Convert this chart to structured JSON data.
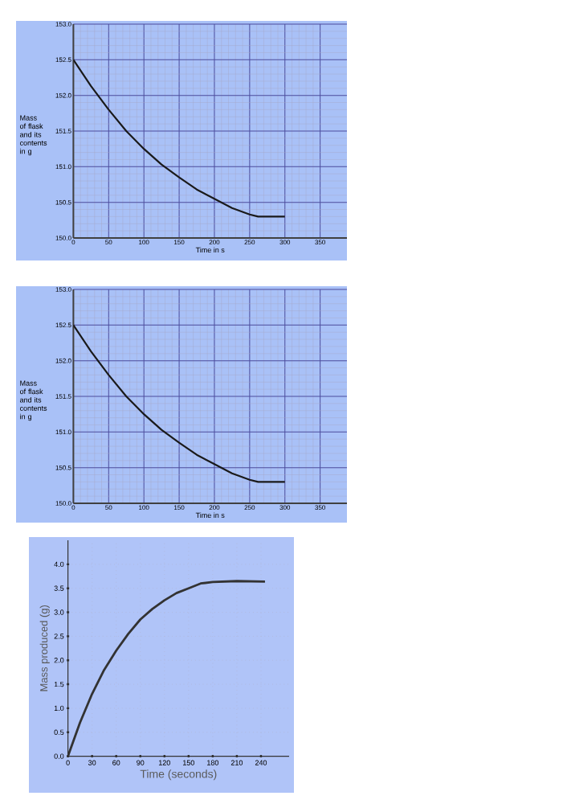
{
  "chart_data": [
    {
      "type": "line",
      "xlabel": "Time in s",
      "ylabel": "Mass of flask and its contents in g",
      "xlim": [
        0,
        388
      ],
      "ylim": [
        150,
        153
      ],
      "xticks": [
        0,
        50,
        100,
        150,
        200,
        250,
        300,
        350
      ],
      "yticks": [
        {
          "value": 150,
          "label": "150.0"
        },
        {
          "value": 150.5,
          "label": "150.5"
        },
        {
          "value": 151,
          "label": "151.0"
        },
        {
          "value": 151.5,
          "label": "151.5"
        },
        {
          "value": 152,
          "label": "152.0"
        },
        {
          "value": 152.5,
          "label": "152.5"
        },
        {
          "value": 153,
          "label": "153.0"
        }
      ],
      "grid": true,
      "marker": "none",
      "line_style": "solid",
      "series": [
        {
          "color": "#1a1a1a",
          "x": [
            0,
            25,
            50,
            75,
            100,
            125,
            150,
            175,
            200,
            225,
            250,
            262,
            300
          ],
          "values": [
            152.5,
            152.13,
            151.8,
            151.5,
            151.25,
            151.03,
            150.85,
            150.68,
            150.55,
            150.42,
            150.33,
            150.3,
            150.3
          ]
        }
      ]
    },
    {
      "type": "line",
      "xlabel": "Time in s",
      "ylabel": "Mass of flask and its contents in g",
      "xlim": [
        0,
        388
      ],
      "ylim": [
        150,
        153
      ],
      "xticks": [
        0,
        50,
        100,
        150,
        200,
        250,
        300,
        350
      ],
      "yticks": [
        {
          "value": 150,
          "label": "150.0"
        },
        {
          "value": 150.5,
          "label": "150.5"
        },
        {
          "value": 151,
          "label": "151.0"
        },
        {
          "value": 151.5,
          "label": "151.5"
        },
        {
          "value": 152,
          "label": "152.0"
        },
        {
          "value": 152.5,
          "label": "152.5"
        },
        {
          "value": 153,
          "label": "153.0"
        }
      ],
      "grid": true,
      "marker": "none",
      "line_style": "solid",
      "series": [
        {
          "color": "#1a1a1a",
          "x": [
            0,
            25,
            50,
            75,
            100,
            125,
            150,
            175,
            200,
            225,
            250,
            262,
            300
          ],
          "values": [
            152.5,
            152.13,
            151.8,
            151.5,
            151.25,
            151.03,
            150.85,
            150.68,
            150.55,
            150.42,
            150.33,
            150.3,
            150.3
          ]
        }
      ]
    },
    {
      "type": "line",
      "xlabel": "Time (seconds)",
      "ylabel": "Mass produced (g)",
      "xlim": [
        0,
        275
      ],
      "ylim": [
        0,
        4.5
      ],
      "xticks": [
        0,
        30,
        60,
        90,
        120,
        150,
        180,
        210,
        240
      ],
      "yticks": [
        {
          "value": 0,
          "label": "0.0"
        },
        {
          "value": 0.5,
          "label": "0.5"
        },
        {
          "value": 1,
          "label": "1.0"
        },
        {
          "value": 1.5,
          "label": "1.5"
        },
        {
          "value": 2,
          "label": "2.0"
        },
        {
          "value": 2.5,
          "label": "2.5"
        },
        {
          "value": 3,
          "label": "3.0"
        },
        {
          "value": 3.5,
          "label": "3.5"
        },
        {
          "value": 4,
          "label": "4.0"
        }
      ],
      "grid": true,
      "marker": "none",
      "line_style": "solid",
      "series": [
        {
          "color": "#333333",
          "x": [
            0,
            15,
            30,
            45,
            60,
            75,
            90,
            105,
            120,
            135,
            150,
            165,
            180,
            210,
            245
          ],
          "values": [
            0,
            0.7,
            1.3,
            1.8,
            2.2,
            2.55,
            2.85,
            3.07,
            3.25,
            3.4,
            3.5,
            3.6,
            3.63,
            3.65,
            3.64
          ]
        }
      ]
    }
  ]
}
